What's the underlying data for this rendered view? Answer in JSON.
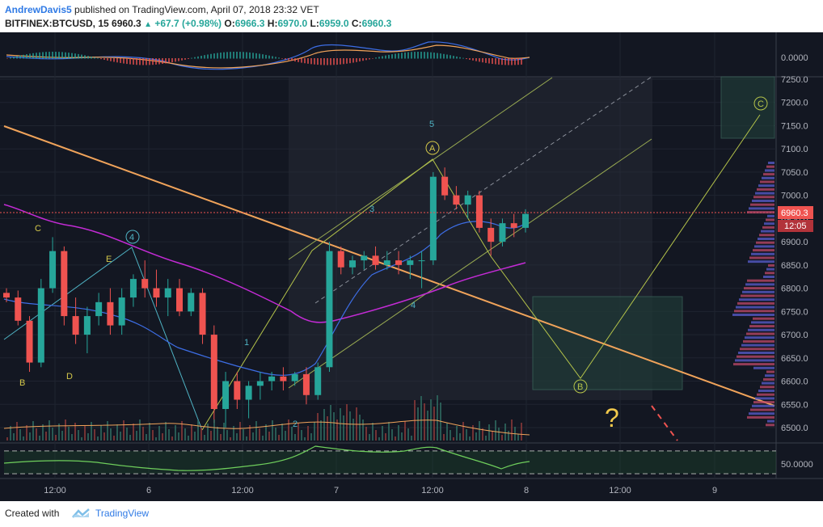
{
  "header": {
    "author": "AndrewDavis5",
    "published_text": "published on TradingView.com, April 07, 2018 23:32 VET",
    "symbol": "BITFINEX:BTCUSD, 15",
    "last": "6960.3",
    "change": "+67.7 (+0.98%)",
    "o_label": "O:",
    "o_value": "6966.3",
    "h_label": "H:",
    "h_value": "6970.0",
    "l_label": "L:",
    "l_value": "6959.0",
    "c_label": "C:",
    "c_value": "6960.3"
  },
  "footer": {
    "created": "Created with",
    "brand": "TradingView"
  },
  "colors": {
    "background": "#131722",
    "up": "#26a69a",
    "down": "#ef5350",
    "trend": "#f0a35a",
    "ma_magenta": "#c42bd6",
    "ma_blue": "#3d6ee6",
    "pattern": "#b5c44a"
  },
  "chart_data": {
    "type": "candlestick",
    "title": "",
    "price_axis": {
      "ylim": [
        6470,
        7260
      ],
      "ticks": [
        6500,
        6550,
        6600,
        6650,
        6700,
        6750,
        6800,
        6850,
        6900,
        6950,
        7000,
        7050,
        7100,
        7150,
        7200,
        7250
      ],
      "tick_labels": [
        "6500.0",
        "6550.0",
        "6600.0",
        "6650.0",
        "6700.0",
        "6750.0",
        "6800.0",
        "6850.0",
        "6900.0",
        "6950.0",
        "7000.0",
        "7050.0",
        "7100.0",
        "7150.0",
        "7200.0",
        "7250.0"
      ]
    },
    "current_price_label": "6960.3",
    "countdown_label": "12:05",
    "macd_axis_label": "0.0000",
    "rsi_axis_label": "50.0000",
    "time_axis": {
      "labels": [
        "12:00",
        "6",
        "12:00",
        "7",
        "12:00",
        "8",
        "12:00",
        "9"
      ]
    },
    "wave_labels": [
      "C",
      "E",
      "B",
      "D",
      "4",
      "1",
      "2",
      "3",
      "4",
      "5",
      "A",
      "B",
      "C",
      "?"
    ],
    "candles_approx": [
      {
        "t": 0,
        "o": 6790,
        "h": 6800,
        "l": 6770,
        "c": 6780
      },
      {
        "t": 1,
        "o": 6780,
        "h": 6795,
        "l": 6720,
        "c": 6730
      },
      {
        "t": 2,
        "o": 6730,
        "h": 6740,
        "l": 6620,
        "c": 6640
      },
      {
        "t": 3,
        "o": 6640,
        "h": 6820,
        "l": 6630,
        "c": 6800
      },
      {
        "t": 4,
        "o": 6800,
        "h": 6910,
        "l": 6790,
        "c": 6880
      },
      {
        "t": 5,
        "o": 6880,
        "h": 6890,
        "l": 6720,
        "c": 6740
      },
      {
        "t": 6,
        "o": 6740,
        "h": 6780,
        "l": 6680,
        "c": 6700
      },
      {
        "t": 7,
        "o": 6700,
        "h": 6760,
        "l": 6660,
        "c": 6740
      },
      {
        "t": 8,
        "o": 6740,
        "h": 6790,
        "l": 6720,
        "c": 6770
      },
      {
        "t": 9,
        "o": 6770,
        "h": 6800,
        "l": 6700,
        "c": 6720
      },
      {
        "t": 10,
        "o": 6720,
        "h": 6800,
        "l": 6700,
        "c": 6780
      },
      {
        "t": 11,
        "o": 6780,
        "h": 6830,
        "l": 6760,
        "c": 6820
      },
      {
        "t": 12,
        "o": 6820,
        "h": 6860,
        "l": 6780,
        "c": 6800
      },
      {
        "t": 13,
        "o": 6800,
        "h": 6840,
        "l": 6760,
        "c": 6780
      },
      {
        "t": 14,
        "o": 6780,
        "h": 6820,
        "l": 6740,
        "c": 6800
      },
      {
        "t": 15,
        "o": 6800,
        "h": 6820,
        "l": 6740,
        "c": 6750
      },
      {
        "t": 16,
        "o": 6750,
        "h": 6800,
        "l": 6740,
        "c": 6790
      },
      {
        "t": 17,
        "o": 6790,
        "h": 6800,
        "l": 6680,
        "c": 6700
      },
      {
        "t": 18,
        "o": 6700,
        "h": 6720,
        "l": 6510,
        "c": 6540
      },
      {
        "t": 19,
        "o": 6540,
        "h": 6620,
        "l": 6500,
        "c": 6600
      },
      {
        "t": 20,
        "o": 6600,
        "h": 6620,
        "l": 6540,
        "c": 6560
      },
      {
        "t": 21,
        "o": 6560,
        "h": 6600,
        "l": 6520,
        "c": 6590
      },
      {
        "t": 22,
        "o": 6590,
        "h": 6620,
        "l": 6560,
        "c": 6600
      },
      {
        "t": 23,
        "o": 6600,
        "h": 6620,
        "l": 6580,
        "c": 6610
      },
      {
        "t": 24,
        "o": 6610,
        "h": 6630,
        "l": 6580,
        "c": 6600
      },
      {
        "t": 25,
        "o": 6600,
        "h": 6620,
        "l": 6590,
        "c": 6615
      },
      {
        "t": 26,
        "o": 6615,
        "h": 6630,
        "l": 6550,
        "c": 6570
      },
      {
        "t": 27,
        "o": 6570,
        "h": 6640,
        "l": 6560,
        "c": 6630
      },
      {
        "t": 28,
        "o": 6630,
        "h": 6900,
        "l": 6620,
        "c": 6880
      },
      {
        "t": 29,
        "o": 6880,
        "h": 6890,
        "l": 6830,
        "c": 6845
      },
      {
        "t": 30,
        "o": 6845,
        "h": 6870,
        "l": 6830,
        "c": 6860
      },
      {
        "t": 31,
        "o": 6860,
        "h": 6880,
        "l": 6840,
        "c": 6870
      },
      {
        "t": 32,
        "o": 6870,
        "h": 6890,
        "l": 6840,
        "c": 6850
      },
      {
        "t": 33,
        "o": 6850,
        "h": 6880,
        "l": 6840,
        "c": 6860
      },
      {
        "t": 34,
        "o": 6860,
        "h": 6880,
        "l": 6830,
        "c": 6850
      },
      {
        "t": 35,
        "o": 6850,
        "h": 6870,
        "l": 6820,
        "c": 6860
      },
      {
        "t": 36,
        "o": 6860,
        "h": 6880,
        "l": 6800,
        "c": 6860
      },
      {
        "t": 37,
        "o": 6860,
        "h": 7050,
        "l": 6850,
        "c": 7040
      },
      {
        "t": 38,
        "o": 7040,
        "h": 7060,
        "l": 6990,
        "c": 7000
      },
      {
        "t": 39,
        "o": 7000,
        "h": 7020,
        "l": 6970,
        "c": 6980
      },
      {
        "t": 40,
        "o": 6980,
        "h": 7010,
        "l": 6950,
        "c": 7000
      },
      {
        "t": 41,
        "o": 7000,
        "h": 7010,
        "l": 6920,
        "c": 6930
      },
      {
        "t": 42,
        "o": 6930,
        "h": 6950,
        "l": 6870,
        "c": 6900
      },
      {
        "t": 43,
        "o": 6900,
        "h": 6950,
        "l": 6890,
        "c": 6940
      },
      {
        "t": 44,
        "o": 6940,
        "h": 6960,
        "l": 6910,
        "c": 6930
      },
      {
        "t": 45,
        "o": 6930,
        "h": 6970,
        "l": 6920,
        "c": 6960
      }
    ]
  }
}
